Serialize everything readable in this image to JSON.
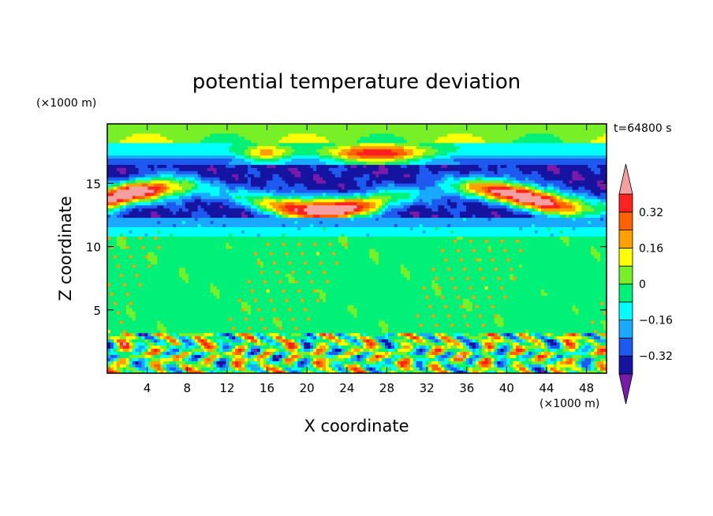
{
  "chart_data": {
    "type": "heatmap",
    "title": "potential temperature deviation",
    "xlabel": "X coordinate",
    "ylabel": "Z coordinate",
    "x_unit": "(×1000 m)",
    "y_unit": "(×1000 m)",
    "time_label": "t=64800 s",
    "xlim": [
      0,
      50
    ],
    "ylim": [
      0,
      19.7
    ],
    "x_ticks": [
      "4",
      "8",
      "12",
      "16",
      "20",
      "24",
      "28",
      "32",
      "36",
      "40",
      "44",
      "48"
    ],
    "x_tick_values": [
      4,
      8,
      12,
      16,
      20,
      24,
      28,
      32,
      36,
      40,
      44,
      48
    ],
    "y_ticks": [
      "5",
      "10",
      "15"
    ],
    "y_tick_values": [
      5,
      10,
      15
    ],
    "colorbar": {
      "levels": [
        -0.4,
        -0.32,
        -0.24,
        -0.16,
        -0.08,
        0,
        0.08,
        0.16,
        0.24,
        0.32,
        0.4
      ],
      "tick_labels": [
        "0.32",
        "0.16",
        "0",
        "−0.16",
        "−0.32"
      ],
      "tick_values": [
        0.32,
        0.16,
        0,
        -0.16,
        -0.32
      ],
      "colors": [
        "#7a1aa8",
        "#1414a0",
        "#1e5af0",
        "#19aaff",
        "#00ffff",
        "#00f078",
        "#78f028",
        "#ffff00",
        "#ffa000",
        "#ff6000",
        "#ff2020",
        "#f4a0a0"
      ]
    },
    "bands": [
      {
        "z": [
          18.3,
          19.7
        ],
        "value": 0.04
      },
      {
        "z": [
          16.4,
          18.3
        ],
        "value": -0.1
      },
      {
        "z": [
          12.4,
          16.4
        ],
        "value": -0.36
      },
      {
        "z": [
          11.5,
          12.4
        ],
        "value": -0.2
      },
      {
        "z": [
          10.9,
          11.5
        ],
        "value": -0.12
      },
      {
        "z": [
          3.3,
          10.9
        ],
        "value": -0.03
      },
      {
        "z": [
          0,
          3.3
        ],
        "value": 0.0
      }
    ]
  }
}
